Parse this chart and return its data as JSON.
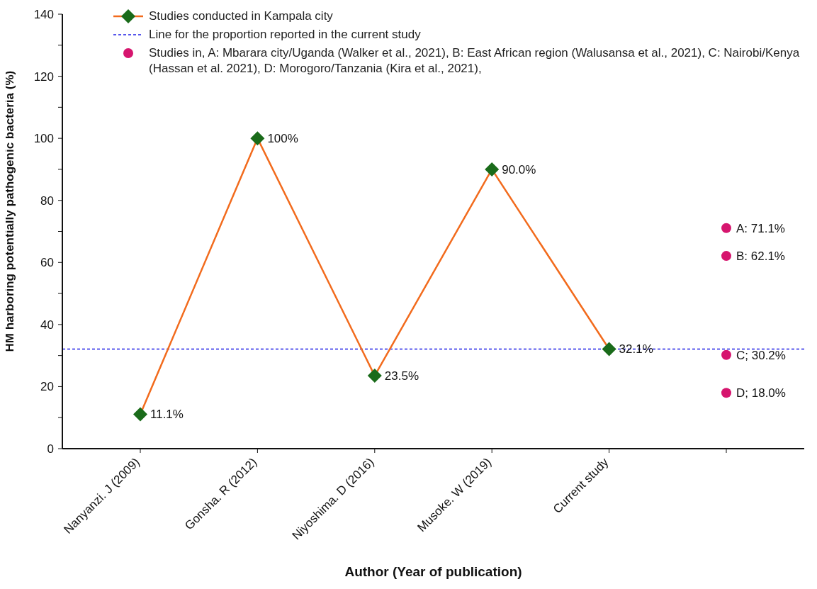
{
  "chart_data": {
    "type": "line",
    "xlabel": "Author (Year of publication)",
    "ylabel": "HM harboring potentially pathogenic bacteria (%)",
    "categories": [
      "Nanyanzi. J (2009)",
      "Gonsha. R (2012)",
      "Niyoshima. D (2016)",
      "Musoke. W (2019)",
      "Current study",
      null
    ],
    "series": [
      {
        "name": "Studies conducted in Kampala city",
        "color": "#f26b1d",
        "marker": "diamond",
        "colors": [
          "#1a6b1a",
          "#1a6b1a",
          "#1a6b1a",
          "#1a6b1a",
          "#1a6b1a",
          null
        ],
        "values": [
          11.1,
          100,
          23.5,
          90.0,
          32.1,
          null
        ],
        "value_labels": [
          "11.1%",
          "100%",
          "23.5%",
          "90.0%",
          "32.1%",
          null
        ]
      },
      {
        "type": "scatter",
        "name": "Studies in, A: Mbarara city/Uganda (Walker et al., 2021), B: East African region (Walusansa et al., 2021), C: Nairobi/Kenya (Hassan et al. 2021), D: Morogoro/Tanzania (Kira et al., 2021),",
        "color": "#d6156e",
        "marker": "circle",
        "values": [
          null,
          null,
          null,
          null,
          null,
          71.1
        ],
        "value_labels": [
          null,
          null,
          null,
          null,
          null,
          "A: 71.1%"
        ]
      },
      {
        "type": "scatter",
        "color": "#d6156e",
        "marker": "circle",
        "values": [
          null,
          null,
          null,
          null,
          null,
          62.1
        ],
        "value_labels": [
          null,
          null,
          null,
          null,
          null,
          "B: 62.1%"
        ]
      },
      {
        "type": "scatter",
        "color": "#d6156e",
        "marker": "circle",
        "values": [
          null,
          null,
          null,
          null,
          null,
          30.2
        ],
        "value_labels": [
          null,
          null,
          null,
          null,
          null,
          "C; 30.2%"
        ]
      },
      {
        "type": "scatter",
        "color": "#d6156e",
        "marker": "circle",
        "values": [
          null,
          null,
          null,
          null,
          null,
          18.0
        ],
        "value_labels": [
          null,
          null,
          null,
          null,
          null,
          "D; 18.0%"
        ]
      }
    ],
    "ref_lines": [
      {
        "axis": "y",
        "value": 32.1,
        "label": "Line for the proportion reported in the current study",
        "color": "#1f1fe6",
        "line_style": "dashed"
      }
    ],
    "ylim": [
      0,
      140
    ],
    "yticks": [
      0,
      {
        "value": 10,
        "label": null
      },
      20,
      {
        "value": 30,
        "label": null
      },
      40,
      {
        "value": 50,
        "label": null
      },
      60,
      {
        "value": 70,
        "label": null
      },
      80,
      {
        "value": 90,
        "label": null
      },
      100,
      {
        "value": 110,
        "label": null
      },
      120,
      {
        "value": 130,
        "label": null
      },
      140
    ],
    "legend": "top left"
  }
}
